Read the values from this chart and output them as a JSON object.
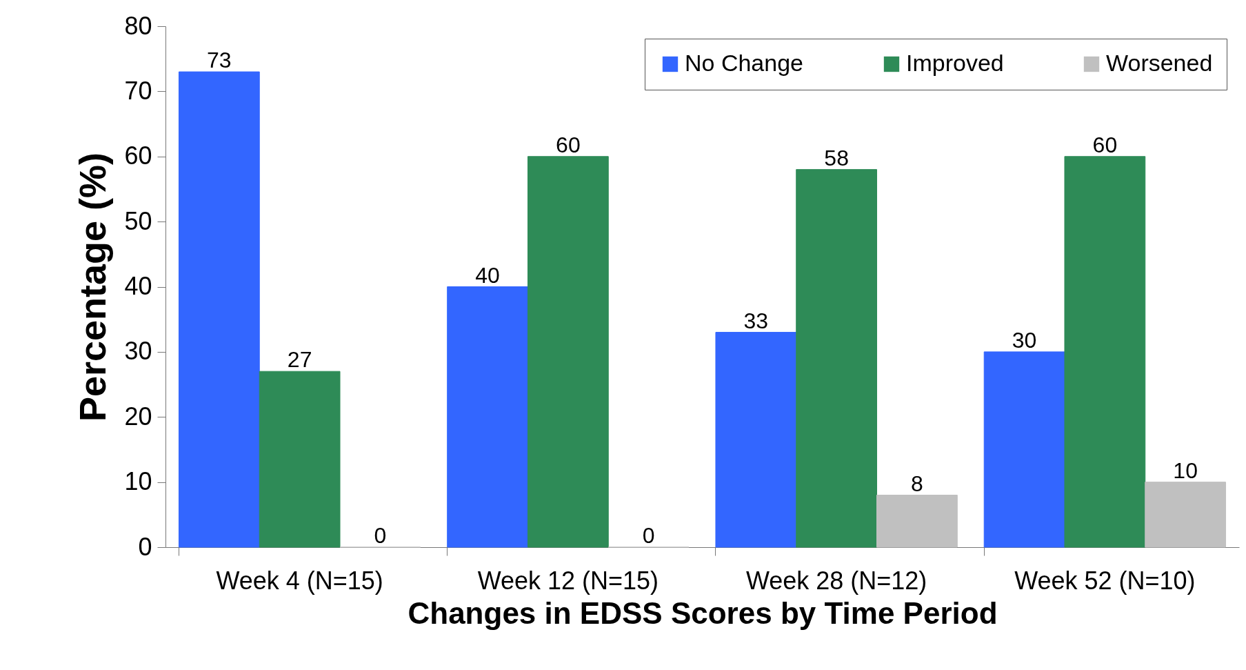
{
  "chart_data": {
    "type": "bar",
    "xlabel": "Changes in EDSS Scores by Time Period",
    "ylabel": "Percentage (%)",
    "categories": [
      "Week 4 (N=15)",
      "Week 12 (N=15)",
      "Week 28 (N=12)",
      "Week 52 (N=10)"
    ],
    "series": [
      {
        "name": "No Change",
        "color": "#3366ff",
        "values": [
          73,
          40,
          33,
          30
        ]
      },
      {
        "name": "Improved",
        "color": "#2e8b57",
        "values": [
          27,
          60,
          58,
          60
        ]
      },
      {
        "name": "Worsened",
        "color": "#c0c0c0",
        "values": [
          0,
          0,
          8,
          10
        ]
      }
    ],
    "ylim": [
      0,
      80
    ],
    "yticks": [
      0,
      10,
      20,
      30,
      40,
      50,
      60,
      70,
      80
    ],
    "grid": false,
    "legend": "top right",
    "data_labels": true
  }
}
